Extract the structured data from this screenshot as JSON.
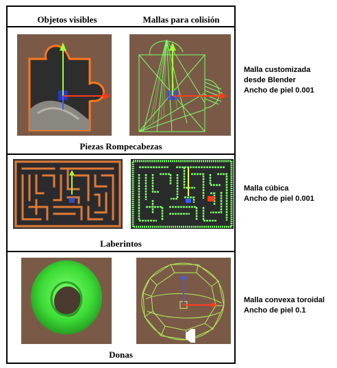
{
  "header": {
    "col_visible": "Objetos visibles",
    "col_collision": "Mallas para colisión"
  },
  "rows": [
    {
      "label": "Piezas Rompecabezas",
      "desc_lines": [
        "Malla customizada",
        "desde Blender",
        "Ancho de piel 0.001"
      ]
    },
    {
      "label": "Laberintos",
      "desc_lines": [
        "Malla cúbica",
        "Ancho de piel 0.001"
      ]
    },
    {
      "label": "Donas",
      "desc_lines": [
        "Malla convexa toroidal",
        "Ancho de piel 0.1"
      ]
    }
  ],
  "colors": {
    "scene_bg": "#7a5a47",
    "wire_green": "#7bff6a",
    "orange_outline": "#ff7a1a",
    "torus_green": "#3ddc36",
    "axis_y": "#a0ff3a",
    "axis_x": "#ff3b1a",
    "axis_z": "#3b5bff"
  }
}
